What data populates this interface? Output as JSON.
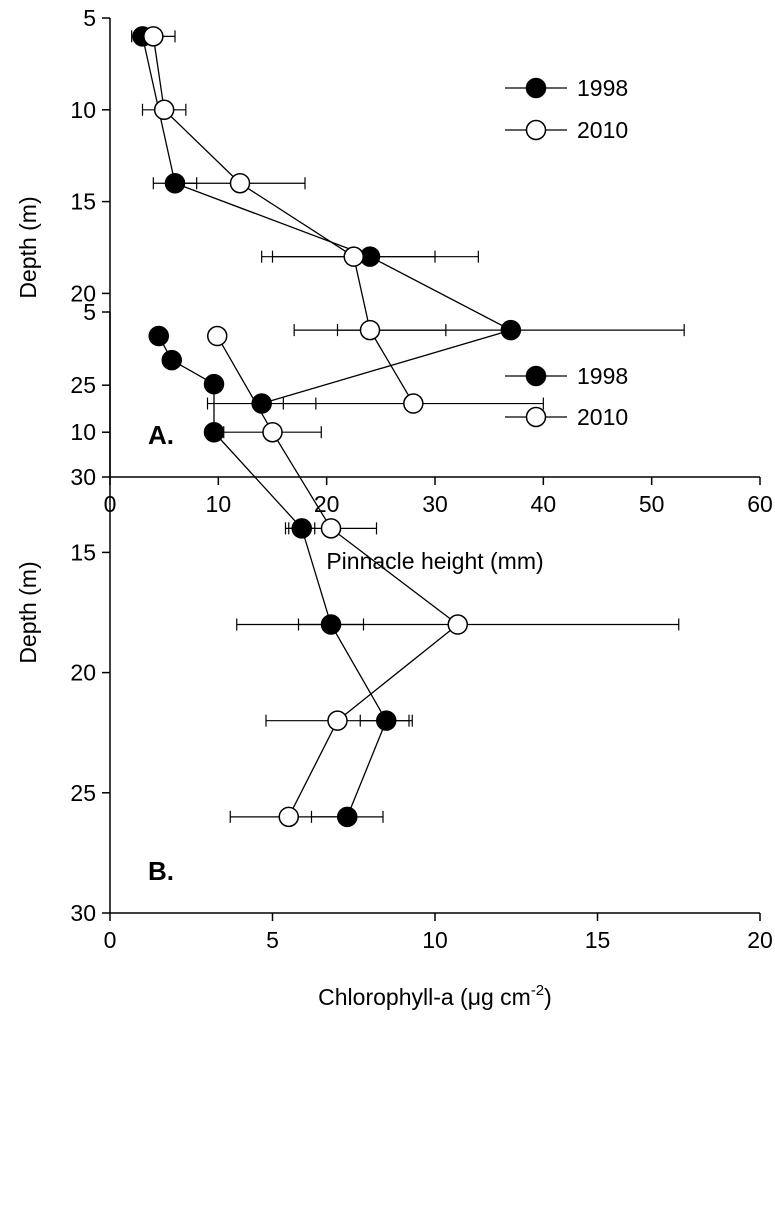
{
  "chart_data": [
    {
      "type": "line",
      "panel_label": "A.",
      "xlabel": "Pinnacle height (mm)",
      "ylabel": "Depth (m)",
      "xlim": [
        0,
        60
      ],
      "ylim": [
        30,
        5
      ],
      "y_inverted": true,
      "xticks": [
        0,
        10,
        20,
        30,
        40,
        50,
        60
      ],
      "yticks": [
        5,
        10,
        15,
        20,
        25,
        30
      ],
      "legend_placement": "top-right",
      "grid": false,
      "series": [
        {
          "name": "1998",
          "marker": "filled-circle",
          "points": [
            {
              "x": 3,
              "y": 6,
              "err": 0
            },
            {
              "x": 6,
              "y": 14,
              "err": 2
            },
            {
              "x": 24,
              "y": 18,
              "err": 10
            },
            {
              "x": 37,
              "y": 22,
              "err": 16
            },
            {
              "x": 14,
              "y": 26,
              "err": 5
            }
          ]
        },
        {
          "name": "2010",
          "marker": "open-circle",
          "points": [
            {
              "x": 4,
              "y": 6,
              "err": 2
            },
            {
              "x": 5,
              "y": 10,
              "err": 2
            },
            {
              "x": 12,
              "y": 14,
              "err": 6
            },
            {
              "x": 22.5,
              "y": 18,
              "err": 7.5
            },
            {
              "x": 24,
              "y": 22,
              "err": 7
            },
            {
              "x": 28,
              "y": 26,
              "err": 12
            }
          ]
        }
      ]
    },
    {
      "type": "line",
      "panel_label": "B.",
      "xlabel": "Chlorophyll-a (μg cm",
      "xlabel_sup": "-2",
      "xlabel_end": ")",
      "ylabel": "Depth (m)",
      "xlim": [
        0,
        20
      ],
      "ylim": [
        30,
        5
      ],
      "y_inverted": true,
      "xticks": [
        0,
        5,
        10,
        15,
        20
      ],
      "yticks": [
        5,
        10,
        15,
        20,
        25,
        30
      ],
      "legend_placement": "top-right",
      "grid": false,
      "series": [
        {
          "name": "1998",
          "marker": "filled-circle",
          "points": [
            {
              "x": 1.5,
              "y": 6,
              "err": 0
            },
            {
              "x": 1.9,
              "y": 7,
              "err": 0
            },
            {
              "x": 3.2,
              "y": 8,
              "err": 0
            },
            {
              "x": 3.2,
              "y": 10,
              "err": 0
            },
            {
              "x": 5.9,
              "y": 14,
              "err": 0.4
            },
            {
              "x": 6.8,
              "y": 18,
              "err": 1
            },
            {
              "x": 8.5,
              "y": 22,
              "err": 0.8
            },
            {
              "x": 7.3,
              "y": 26,
              "err": 1.1
            }
          ]
        },
        {
          "name": "2010",
          "marker": "open-circle",
          "points": [
            {
              "x": 3.3,
              "y": 6,
              "err": 0.2
            },
            {
              "x": 5.0,
              "y": 10,
              "err": 1.5
            },
            {
              "x": 6.8,
              "y": 14,
              "err": 1.4
            },
            {
              "x": 10.7,
              "y": 18,
              "err": 6.8
            },
            {
              "x": 7.0,
              "y": 22,
              "err": 2.2
            },
            {
              "x": 5.5,
              "y": 26,
              "err": 1.8
            }
          ]
        }
      ]
    }
  ]
}
